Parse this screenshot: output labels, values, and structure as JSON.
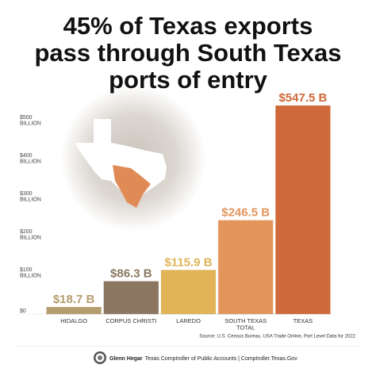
{
  "chart_data": {
    "type": "bar",
    "title": [
      "45% of Texas exports",
      "pass through South Texas",
      "ports of entry"
    ],
    "categories": [
      "HIDALGO",
      "CORPUS CHRISTI",
      "LAREDO",
      "SOUTH TEXAS TOTAL",
      "TEXAS"
    ],
    "values": [
      18.7,
      86.3,
      115.9,
      246.5,
      547.5
    ],
    "value_labels": [
      "$18.7 B",
      "$86.3 B",
      "$115.9 B",
      "$246.5 B",
      "$547.5 B"
    ],
    "colors": [
      "#b59c6d",
      "#8b7761",
      "#e0b457",
      "#e3955c",
      "#d0693a"
    ],
    "ylim": [
      0,
      560
    ],
    "yticks": [
      {
        "value": 0,
        "label": "$0"
      },
      {
        "value": 100,
        "label": "$100 BILLION"
      },
      {
        "value": 200,
        "label": "$200 BILLION"
      },
      {
        "value": 300,
        "label": "$300 BILLION"
      },
      {
        "value": 400,
        "label": "$400 BILLION"
      },
      {
        "value": 500,
        "label": "$500 BILLION"
      }
    ],
    "source": "Source: U.S. Census Bureau, USA Trade Online, Port Level Data for 2022",
    "footer_name": "Glenn Hegar",
    "footer_text": "Texas Comptroller of Public Accounts | Comptroller.Texas.Gov"
  }
}
